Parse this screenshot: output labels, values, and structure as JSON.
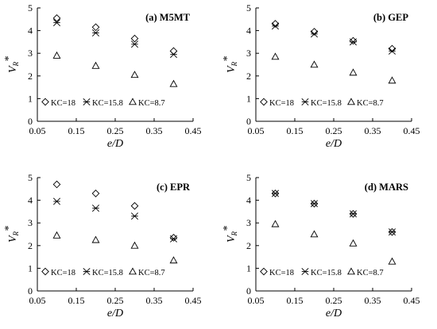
{
  "chart_data": [
    {
      "type": "scatter",
      "title": "(a) M5MT",
      "xlabel": "e/D",
      "ylabel": "V_R*",
      "xlim": [
        0.05,
        0.45
      ],
      "ylim": [
        0,
        5
      ],
      "xticks": [
        "0.05",
        "0.15",
        "0.25",
        "0.35",
        "0.45"
      ],
      "yticks": [
        "0",
        "1",
        "2",
        "3",
        "4",
        "5"
      ],
      "legend_position": "bottom-left",
      "series": [
        {
          "name": "KC=18",
          "marker": "diamond",
          "x": [
            0.1,
            0.2,
            0.3,
            0.4
          ],
          "y": [
            4.55,
            4.15,
            3.65,
            3.1
          ]
        },
        {
          "name": "KC=15.8",
          "marker": "star",
          "x": [
            0.1,
            0.2,
            0.3,
            0.4
          ],
          "y": [
            4.35,
            3.9,
            3.4,
            2.95
          ]
        },
        {
          "name": "KC=8.7",
          "marker": "triangle",
          "x": [
            0.1,
            0.2,
            0.3,
            0.4
          ],
          "y": [
            2.9,
            2.45,
            2.05,
            1.65
          ]
        }
      ]
    },
    {
      "type": "scatter",
      "title": "(b) GEP",
      "xlabel": "e/D",
      "ylabel": "V_R*",
      "xlim": [
        0.05,
        0.45
      ],
      "ylim": [
        0,
        5
      ],
      "xticks": [
        "0.05",
        "0.15",
        "0.25",
        "0.35",
        "0.45"
      ],
      "yticks": [
        "0",
        "1",
        "2",
        "3",
        "4",
        "5"
      ],
      "legend_position": "bottom-left",
      "series": [
        {
          "name": "KC=18",
          "marker": "diamond",
          "x": [
            0.1,
            0.2,
            0.3,
            0.4
          ],
          "y": [
            4.3,
            3.95,
            3.55,
            3.2
          ]
        },
        {
          "name": "KC=15.8",
          "marker": "star",
          "x": [
            0.1,
            0.2,
            0.3,
            0.4
          ],
          "y": [
            4.2,
            3.85,
            3.5,
            3.1
          ]
        },
        {
          "name": "KC=8.7",
          "marker": "triangle",
          "x": [
            0.1,
            0.2,
            0.3,
            0.4
          ],
          "y": [
            2.85,
            2.5,
            2.15,
            1.8
          ]
        }
      ]
    },
    {
      "type": "scatter",
      "title": "(c) EPR",
      "xlabel": "e/D",
      "ylabel": "V_R*",
      "xlim": [
        0.05,
        0.45
      ],
      "ylim": [
        0,
        5
      ],
      "xticks": [
        "0.05",
        "0.15",
        "0.25",
        "0.35",
        "0.45"
      ],
      "yticks": [
        "0",
        "1",
        "2",
        "3",
        "4",
        "5"
      ],
      "legend_position": "bottom-left",
      "series": [
        {
          "name": "KC=18",
          "marker": "diamond",
          "x": [
            0.1,
            0.2,
            0.3,
            0.4
          ],
          "y": [
            4.7,
            4.3,
            3.75,
            2.35
          ]
        },
        {
          "name": "KC=15.8",
          "marker": "star",
          "x": [
            0.1,
            0.2,
            0.3,
            0.4
          ],
          "y": [
            3.95,
            3.65,
            3.3,
            2.3
          ]
        },
        {
          "name": "KC=8.7",
          "marker": "triangle",
          "x": [
            0.1,
            0.2,
            0.3,
            0.4
          ],
          "y": [
            2.45,
            2.25,
            2.0,
            1.35
          ]
        }
      ]
    },
    {
      "type": "scatter",
      "title": "(d) MARS",
      "xlabel": "e/D",
      "ylabel": "V_R*",
      "xlim": [
        0.05,
        0.45
      ],
      "ylim": [
        0,
        5
      ],
      "xticks": [
        "0.05",
        "0.15",
        "0.25",
        "0.35",
        "0.45"
      ],
      "yticks": [
        "0",
        "1",
        "2",
        "3",
        "4",
        "5"
      ],
      "legend_position": "bottom-left",
      "series": [
        {
          "name": "KC=18",
          "marker": "diamond",
          "x": [
            0.1,
            0.2,
            0.3,
            0.4
          ],
          "y": [
            4.3,
            3.85,
            3.4,
            2.6
          ]
        },
        {
          "name": "KC=15.8",
          "marker": "star",
          "x": [
            0.1,
            0.2,
            0.3,
            0.4
          ],
          "y": [
            4.3,
            3.85,
            3.4,
            2.6
          ]
        },
        {
          "name": "KC=8.7",
          "marker": "triangle",
          "x": [
            0.1,
            0.2,
            0.3,
            0.4
          ],
          "y": [
            2.95,
            2.5,
            2.1,
            1.3
          ]
        }
      ]
    }
  ]
}
